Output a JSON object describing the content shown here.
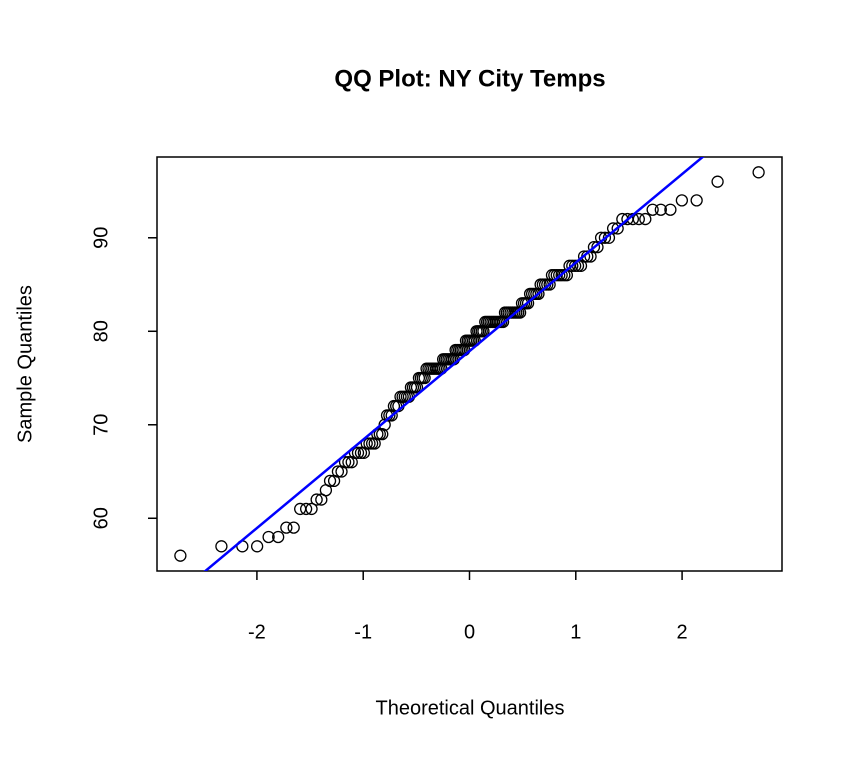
{
  "chart_data": {
    "type": "scatter",
    "title": "QQ Plot: NY City Temps",
    "x_label": "Theoretical Quantiles",
    "y_label": "Sample Quantiles",
    "x": [
      -2.72,
      -2.334,
      -2.137,
      -1.998,
      -1.89,
      -1.8,
      -1.723,
      -1.654,
      -1.593,
      -1.537,
      -1.486,
      -1.438,
      -1.394,
      -1.351,
      -1.312,
      -1.274,
      -1.238,
      -1.204,
      -1.171,
      -1.139,
      -1.108,
      -1.078,
      -1.049,
      -1.021,
      -0.994,
      -0.967,
      -0.941,
      -0.916,
      -0.892,
      -0.867,
      -0.844,
      -0.821,
      -0.798,
      -0.776,
      -0.754,
      -0.732,
      -0.711,
      -0.69,
      -0.669,
      -0.649,
      -0.629,
      -0.609,
      -0.589,
      -0.57,
      -0.551,
      -0.532,
      -0.513,
      -0.494,
      -0.476,
      -0.458,
      -0.44,
      -0.422,
      -0.404,
      -0.386,
      -0.368,
      -0.351,
      -0.334,
      -0.316,
      -0.299,
      -0.282,
      -0.265,
      -0.248,
      -0.231,
      -0.215,
      -0.198,
      -0.181,
      -0.165,
      -0.148,
      -0.131,
      -0.115,
      -0.098,
      -0.082,
      -0.066,
      -0.049,
      -0.033,
      -0.016,
      0,
      0.016,
      0.033,
      0.049,
      0.066,
      0.082,
      0.098,
      0.115,
      0.131,
      0.148,
      0.165,
      0.181,
      0.198,
      0.215,
      0.231,
      0.248,
      0.265,
      0.282,
      0.299,
      0.316,
      0.334,
      0.351,
      0.368,
      0.386,
      0.404,
      0.422,
      0.44,
      0.458,
      0.476,
      0.494,
      0.513,
      0.532,
      0.551,
      0.57,
      0.589,
      0.609,
      0.629,
      0.649,
      0.669,
      0.69,
      0.711,
      0.732,
      0.754,
      0.776,
      0.798,
      0.821,
      0.844,
      0.867,
      0.892,
      0.916,
      0.941,
      0.967,
      0.994,
      1.021,
      1.049,
      1.078,
      1.108,
      1.139,
      1.171,
      1.204,
      1.238,
      1.274,
      1.312,
      1.351,
      1.394,
      1.438,
      1.486,
      1.537,
      1.593,
      1.654,
      1.723,
      1.8,
      1.89,
      1.998,
      2.137,
      2.334,
      2.72
    ],
    "y": [
      56,
      57,
      57,
      57,
      58,
      58,
      59,
      59,
      61,
      61,
      61,
      62,
      62,
      63,
      64,
      64,
      65,
      65,
      66,
      66,
      66,
      67,
      67,
      67,
      67,
      68,
      68,
      68,
      68,
      69,
      69,
      69,
      70,
      71,
      71,
      71,
      72,
      72,
      72,
      73,
      73,
      73,
      73,
      73,
      74,
      74,
      74,
      74,
      75,
      75,
      75,
      75,
      76,
      76,
      76,
      76,
      76,
      76,
      76,
      76,
      76,
      77,
      77,
      77,
      77,
      77,
      77,
      77,
      78,
      78,
      78,
      78,
      78,
      78,
      79,
      79,
      79,
      79,
      79,
      79,
      80,
      80,
      80,
      80,
      80,
      81,
      81,
      81,
      81,
      81,
      81,
      81,
      81,
      81,
      81,
      81,
      82,
      82,
      82,
      82,
      82,
      82,
      82,
      82,
      82,
      83,
      83,
      83,
      83,
      84,
      84,
      84,
      84,
      84,
      85,
      85,
      85,
      85,
      85,
      86,
      86,
      86,
      86,
      86,
      86,
      86,
      87,
      87,
      87,
      87,
      87,
      88,
      88,
      88,
      89,
      89,
      90,
      90,
      90,
      91,
      91,
      92,
      92,
      92,
      92,
      92,
      93,
      93,
      93,
      94,
      94,
      96,
      97
    ],
    "color": "#000000",
    "line": {
      "intercept": 77.88,
      "slope": 9.465,
      "color": "#0000ff"
    },
    "xlim": [
      -2.94,
      2.94
    ],
    "ylim": [
      54.36,
      98.64
    ],
    "xticks": [
      -2,
      -1,
      0,
      1,
      2
    ],
    "yticks": [
      60,
      70,
      80,
      90
    ]
  }
}
